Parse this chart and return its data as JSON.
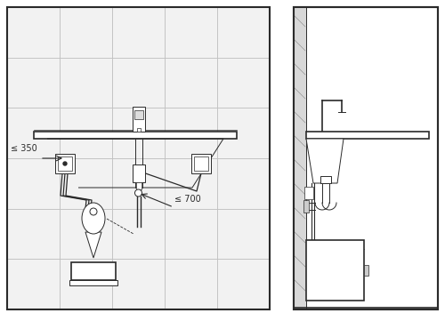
{
  "bg_color": "#ffffff",
  "line_color": "#2a2a2a",
  "tile_fill": "#f2f2f2",
  "tile_edge": "#bbbbbb",
  "label_350": "≤ 350",
  "label_700": "≤ 700"
}
